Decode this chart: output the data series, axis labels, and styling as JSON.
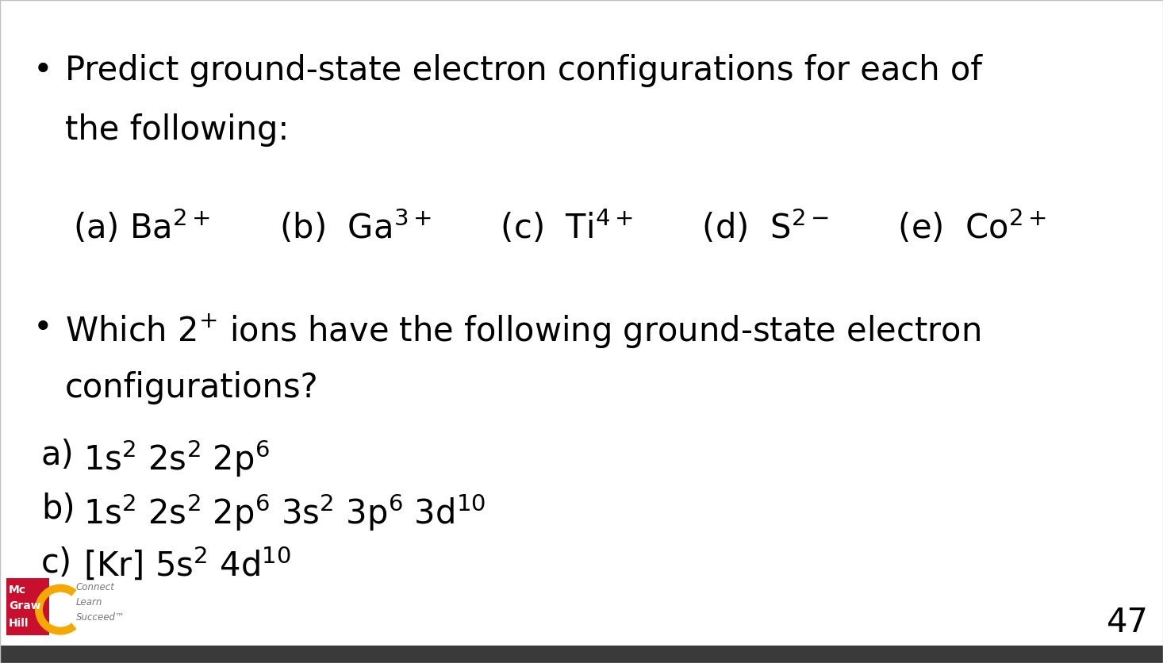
{
  "background_color": "#ffffff",
  "border_color": "#c0c0c0",
  "text_color": "#000000",
  "page_number": "47",
  "bullet1_line1": "Predict ground-state electron configurations for each of",
  "bullet1_line2": "the following:",
  "ion_line": "(a) Ba$^{2+}$      (b)  Ga$^{3+}$      (c)  Ti$^{4+}$      (d)  S$^{2-}$      (e)  Co$^{2+}$",
  "bullet2_line1": "Which 2$^{+}$ ions have the following ground-state electron",
  "bullet2_line2": "configurations?",
  "item_a_label": "a)",
  "item_a": "1s$^{2}$ 2s$^{2}$ 2p$^{6}$",
  "item_b_label": "b)",
  "item_b": "1s$^{2}$ 2s$^{2}$ 2p$^{6}$ 3s$^{2}$ 3p$^{6}$ 3d$^{10}$",
  "item_c_label": "c)",
  "item_c": "[Kr] 5s$^{2}$ 4d$^{10}$",
  "mcgraw_hill_red": "#c8102e",
  "mcgraw_hill_orange": "#f5a800",
  "mcgraw_hill_gray": "#777777",
  "bottom_bar_color": "#3a3a3a",
  "main_fontsize": 30,
  "page_num_fontsize": 30
}
